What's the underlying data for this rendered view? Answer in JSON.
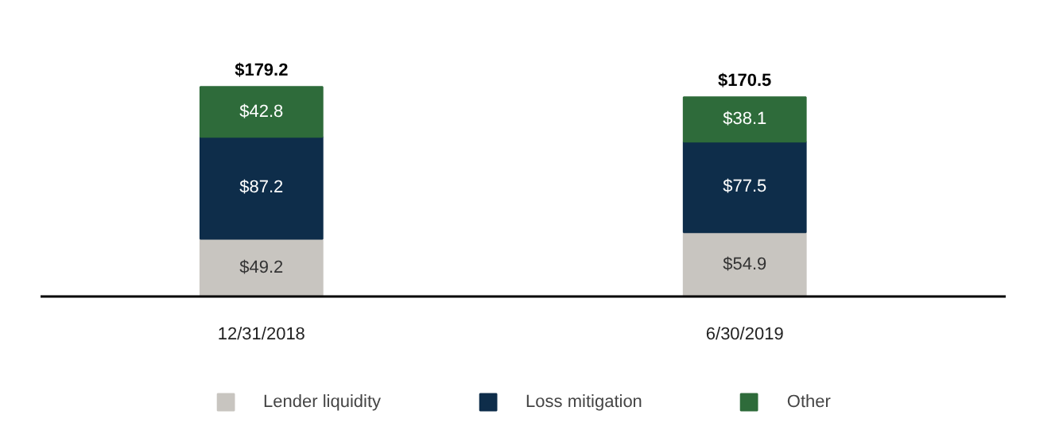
{
  "chart_data": {
    "type": "bar",
    "stacked": true,
    "categories": [
      "12/31/2018",
      "6/30/2019"
    ],
    "series": [
      {
        "name": "Lender liquidity",
        "color": "#c8c5c0",
        "values": [
          49.2,
          54.9
        ],
        "value_labels": [
          "$49.2",
          "$54.9"
        ]
      },
      {
        "name": "Loss mitigation",
        "color": "#0e2d4a",
        "values": [
          87.2,
          77.5
        ],
        "value_labels": [
          "$87.2",
          "$77.5"
        ]
      },
      {
        "name": "Other",
        "color": "#2e6b3a",
        "values": [
          42.8,
          38.1
        ],
        "value_labels": [
          "$42.8",
          "$38.1"
        ]
      }
    ],
    "totals": [
      "$179.2",
      "$170.5"
    ],
    "legend": "bottom",
    "tick_labels": "x"
  }
}
